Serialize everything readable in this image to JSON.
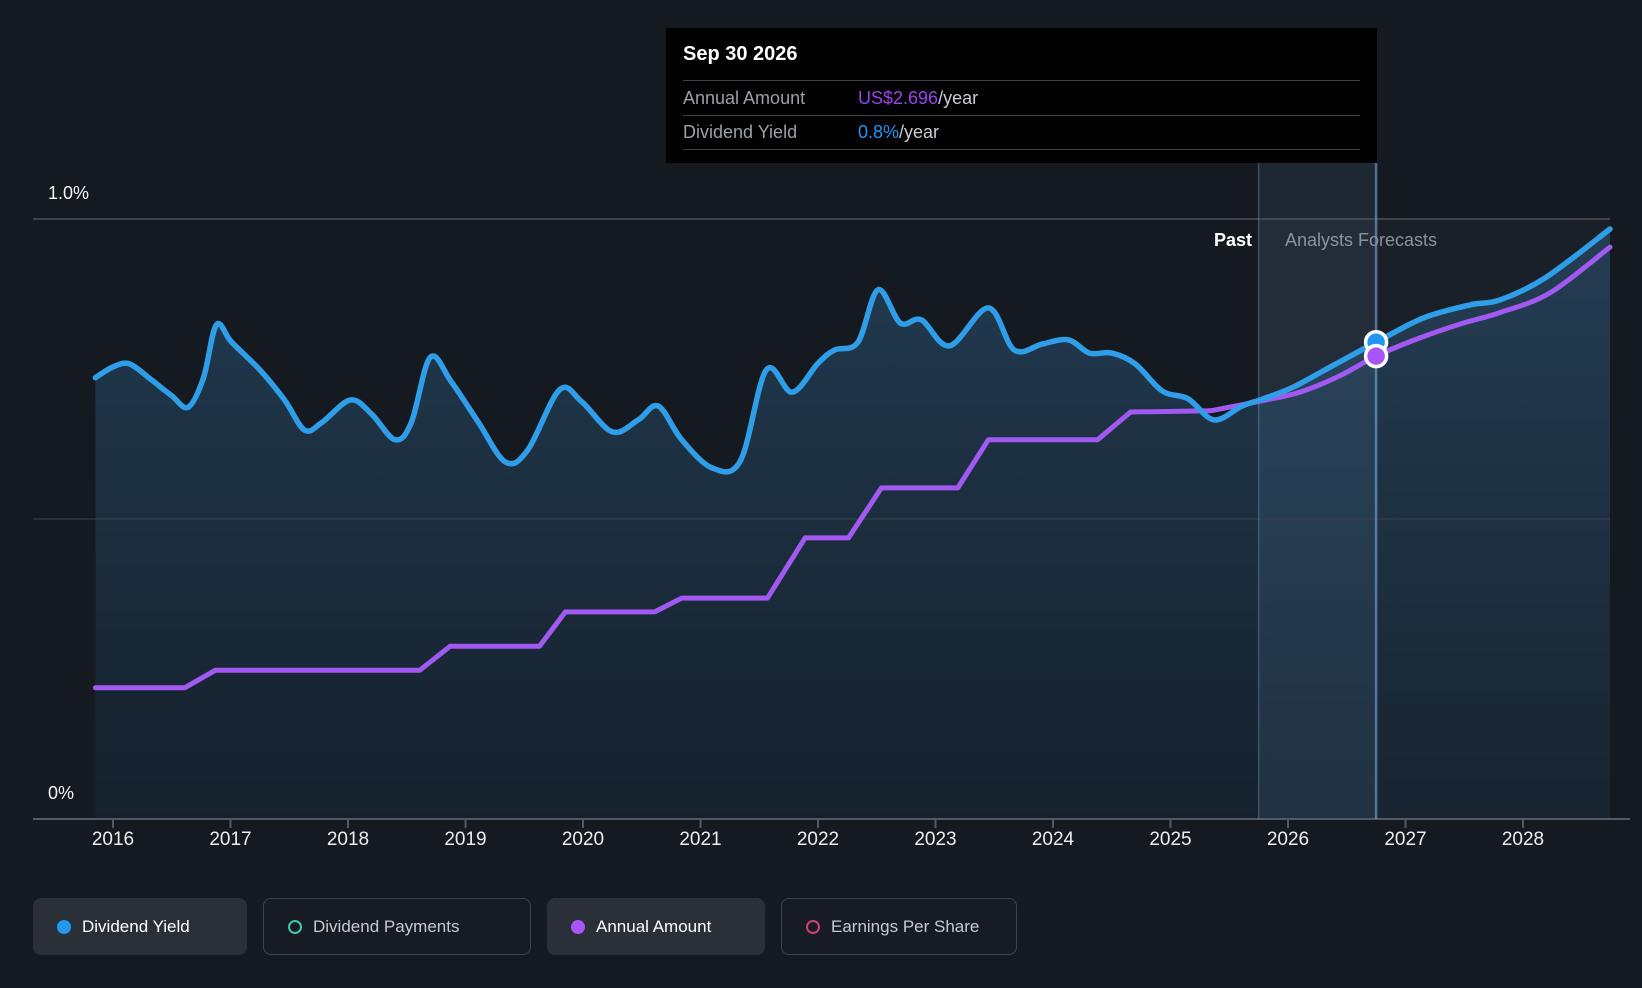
{
  "tooltip": {
    "date": "Sep 30 2026",
    "rows": [
      {
        "label": "Annual Amount",
        "value": "US$2.696",
        "suffix": "/year",
        "color": "#9d43ee"
      },
      {
        "label": "Dividend Yield",
        "value": "0.8%",
        "suffix": "/year",
        "color": "#2196f3"
      }
    ]
  },
  "sections": {
    "past_label": "Past",
    "forecast_label": "Analysts Forecasts"
  },
  "axis": {
    "y_top_label": "1.0%",
    "y_bottom_label": "0%",
    "years": [
      2016,
      2017,
      2018,
      2019,
      2020,
      2021,
      2022,
      2023,
      2024,
      2025,
      2026,
      2027,
      2028
    ]
  },
  "legend": {
    "items": [
      {
        "label": "Dividend Yield",
        "color": "#2196f3",
        "filled": true,
        "active": true
      },
      {
        "label": "Dividend Payments",
        "color": "#3ec9ad",
        "filled": false,
        "active": false
      },
      {
        "label": "Annual Amount",
        "color": "#a855f7",
        "filled": true,
        "active": true
      },
      {
        "label": "Earnings Per Share",
        "color": "#cf3d7c",
        "filled": false,
        "active": false
      }
    ]
  },
  "chart_data": {
    "type": "line",
    "x_range": [
      2015.85,
      2028.74
    ],
    "y_axis": {
      "min": 0,
      "max": 1.0,
      "unit": "%",
      "gridlines_pct": [
        0,
        0.5,
        1.0
      ],
      "grid": true
    },
    "x_ticks": [
      2016,
      2017,
      2018,
      2019,
      2020,
      2021,
      2022,
      2023,
      2024,
      2025,
      2026,
      2027,
      2028
    ],
    "past_forecast_boundary": 2025.75,
    "hover_x": 2026.75,
    "series": [
      {
        "name": "Dividend Yield",
        "color": "#2f9ee8",
        "style": "area-line",
        "unit": "percent_yield",
        "points": [
          [
            2015.85,
            0.733
          ],
          [
            2016.0,
            0.751
          ],
          [
            2016.14,
            0.756
          ],
          [
            2016.33,
            0.729
          ],
          [
            2016.5,
            0.703
          ],
          [
            2016.64,
            0.684
          ],
          [
            2016.77,
            0.733
          ],
          [
            2016.88,
            0.821
          ],
          [
            2017.01,
            0.792
          ],
          [
            2017.25,
            0.746
          ],
          [
            2017.46,
            0.696
          ],
          [
            2017.63,
            0.646
          ],
          [
            2017.78,
            0.659
          ],
          [
            2018.02,
            0.696
          ],
          [
            2018.2,
            0.673
          ],
          [
            2018.4,
            0.63
          ],
          [
            2018.54,
            0.659
          ],
          [
            2018.7,
            0.767
          ],
          [
            2018.88,
            0.726
          ],
          [
            2019.11,
            0.659
          ],
          [
            2019.34,
            0.593
          ],
          [
            2019.53,
            0.613
          ],
          [
            2019.8,
            0.713
          ],
          [
            2019.99,
            0.693
          ],
          [
            2020.25,
            0.643
          ],
          [
            2020.47,
            0.663
          ],
          [
            2020.64,
            0.686
          ],
          [
            2020.84,
            0.63
          ],
          [
            2021.1,
            0.583
          ],
          [
            2021.34,
            0.595
          ],
          [
            2021.56,
            0.746
          ],
          [
            2021.78,
            0.709
          ],
          [
            2022.0,
            0.757
          ],
          [
            2022.14,
            0.779
          ],
          [
            2022.34,
            0.792
          ],
          [
            2022.51,
            0.879
          ],
          [
            2022.7,
            0.824
          ],
          [
            2022.88,
            0.829
          ],
          [
            2023.12,
            0.786
          ],
          [
            2023.45,
            0.849
          ],
          [
            2023.67,
            0.779
          ],
          [
            2023.91,
            0.789
          ],
          [
            2024.13,
            0.796
          ],
          [
            2024.31,
            0.774
          ],
          [
            2024.5,
            0.774
          ],
          [
            2024.7,
            0.756
          ],
          [
            2024.93,
            0.711
          ],
          [
            2025.15,
            0.698
          ],
          [
            2025.37,
            0.663
          ],
          [
            2025.61,
            0.686
          ],
          [
            2025.79,
            0.698
          ],
          [
            2026.05,
            0.718
          ],
          [
            2026.39,
            0.754
          ],
          [
            2026.75,
            0.792
          ],
          [
            2027.15,
            0.832
          ],
          [
            2027.55,
            0.854
          ],
          [
            2027.8,
            0.862
          ],
          [
            2028.19,
            0.899
          ],
          [
            2028.74,
            0.98
          ]
        ]
      },
      {
        "name": "Annual Amount",
        "color": "#a259f2",
        "style": "step-line",
        "unit": "axis_fraction",
        "points": [
          [
            2015.85,
            0.218
          ],
          [
            2016.61,
            0.218
          ],
          [
            2016.87,
            0.247
          ],
          [
            2018.61,
            0.247
          ],
          [
            2018.87,
            0.287
          ],
          [
            2019.63,
            0.287
          ],
          [
            2019.85,
            0.344
          ],
          [
            2020.61,
            0.344
          ],
          [
            2020.84,
            0.367
          ],
          [
            2021.57,
            0.367
          ],
          [
            2021.89,
            0.467
          ],
          [
            2022.26,
            0.467
          ],
          [
            2022.54,
            0.55
          ],
          [
            2023.19,
            0.55
          ],
          [
            2023.45,
            0.63
          ],
          [
            2024.38,
            0.63
          ],
          [
            2024.66,
            0.676
          ],
          [
            2025.34,
            0.678
          ],
          [
            2025.76,
            0.694
          ],
          [
            2026.1,
            0.709
          ],
          [
            2026.44,
            0.736
          ],
          [
            2026.75,
            0.769
          ],
          [
            2027.12,
            0.799
          ],
          [
            2027.46,
            0.822
          ],
          [
            2027.8,
            0.841
          ],
          [
            2028.23,
            0.874
          ],
          [
            2028.74,
            0.95
          ]
        ]
      }
    ],
    "markers": [
      {
        "series": "Dividend Yield",
        "x": 2026.75,
        "y": 0.792,
        "color": "#2196f3"
      },
      {
        "series": "Annual Amount",
        "x": 2026.75,
        "y": 0.769,
        "color": "#a855f7"
      }
    ]
  }
}
